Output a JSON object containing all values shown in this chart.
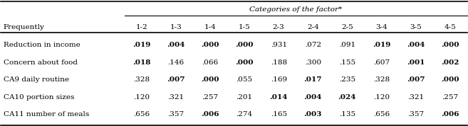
{
  "title": "Categories of the factor*",
  "col_header_row1": [
    "",
    "1-2",
    "1-3",
    "1-4",
    "1-5",
    "2-3",
    "2-4",
    "2-5",
    "3-4",
    "3-5",
    "4-5"
  ],
  "row_label_header": "Frequently",
  "rows": [
    [
      "Reduction in income",
      ".019",
      ".004",
      ".000",
      ".000",
      ".931",
      ".072",
      ".091",
      ".019",
      ".004",
      ".000"
    ],
    [
      "Concern about food",
      ".018",
      ".146",
      ".066",
      ".000",
      ".188",
      ".300",
      ".155",
      ".607",
      ".001",
      ".002"
    ],
    [
      "CA9 daily routine",
      ".328",
      ".007",
      ".000",
      ".055",
      ".169",
      ".017",
      ".235",
      ".328",
      ".007",
      ".000"
    ],
    [
      "CA10 portion sizes",
      ".120",
      ".321",
      ".257",
      ".201",
      ".014",
      ".004",
      ".024",
      ".120",
      ".321",
      ".257"
    ],
    [
      "CA11 number of meals",
      ".656",
      ".357",
      ".006",
      ".274",
      ".165",
      ".003",
      ".135",
      ".656",
      ".357",
      ".006"
    ]
  ],
  "bold_values": [
    [
      ".019",
      ".004",
      ".000",
      ".000",
      ".019",
      ".004",
      ".000"
    ],
    [
      ".018",
      ".000",
      ".001",
      ".002"
    ],
    [
      ".007",
      ".000",
      ".017",
      ".007",
      ".000"
    ],
    [
      ".014",
      ".004",
      ".024"
    ],
    [
      ".006",
      ".003",
      ".006"
    ]
  ],
  "figsize": [
    6.57,
    1.78
  ],
  "dpi": 100,
  "background": "#ffffff",
  "text_color": "#000000",
  "font_size": 7.5,
  "header_font_size": 7.5
}
